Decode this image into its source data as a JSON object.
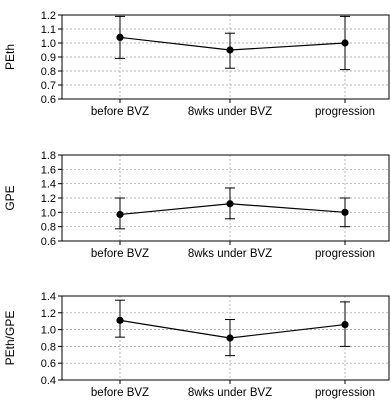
{
  "chart_data": [
    {
      "type": "line",
      "ylabel": "PEth",
      "categories": [
        "before BVZ",
        "8wks under BVZ",
        "progression"
      ],
      "values": [
        1.04,
        0.95,
        1.0
      ],
      "err_low": [
        0.89,
        0.82,
        0.81
      ],
      "err_high": [
        1.19,
        1.07,
        1.19
      ],
      "ylim": [
        0.6,
        1.2
      ],
      "yticks": [
        0.6,
        0.7,
        0.8,
        0.9,
        1.0,
        1.1,
        1.2
      ],
      "ytick_labels": [
        "0.6",
        "0.7",
        "0.8",
        "0.9",
        "1.0",
        "1.1",
        "1.2"
      ],
      "grid": true
    },
    {
      "type": "line",
      "ylabel": "GPE",
      "categories": [
        "before BVZ",
        "8wks under BVZ",
        "progression"
      ],
      "values": [
        0.97,
        1.12,
        1.0
      ],
      "err_low": [
        0.77,
        0.91,
        0.8
      ],
      "err_high": [
        1.2,
        1.34,
        1.2
      ],
      "ylim": [
        0.6,
        1.8
      ],
      "yticks": [
        0.6,
        0.8,
        1.0,
        1.2,
        1.4,
        1.6,
        1.8
      ],
      "ytick_labels": [
        "0.6",
        "0.8",
        "1.0",
        "1.2",
        "1.4",
        "1.6",
        "1.8"
      ],
      "grid": true
    },
    {
      "type": "line",
      "ylabel": "PEth/GPE",
      "categories": [
        "before BVZ",
        "8wks under BVZ",
        "progression"
      ],
      "values": [
        1.11,
        0.9,
        1.06
      ],
      "err_low": [
        0.91,
        0.69,
        0.8
      ],
      "err_high": [
        1.35,
        1.12,
        1.33
      ],
      "ylim": [
        0.4,
        1.4
      ],
      "yticks": [
        0.4,
        0.6,
        0.8,
        1.0,
        1.2,
        1.4
      ],
      "ytick_labels": [
        "0.4",
        "0.6",
        "0.8",
        "1.0",
        "1.2",
        "1.4"
      ],
      "grid": true
    }
  ]
}
